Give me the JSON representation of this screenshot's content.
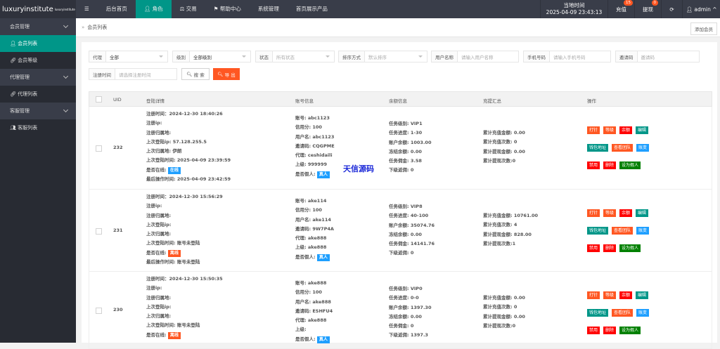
{
  "header": {
    "logo": "luxuryinstitute",
    "logo_sup": "luxuryinstitute",
    "menu_icon": "menu-icon",
    "nav": [
      "后台首页",
      "角色",
      "交易",
      "帮助中心",
      "系统管理",
      "首页展示产品"
    ],
    "time_label": "当地时间",
    "time_value": "2025-04-09 23:43:13",
    "recharge": "充值",
    "recharge_count": "15",
    "withdraw": "提现",
    "withdraw_count": "0",
    "user": "admin"
  },
  "sidebar": [
    {
      "label": "会员管理",
      "type": "group"
    },
    {
      "label": "会员列表",
      "type": "item",
      "active": true
    },
    {
      "label": "会员等级",
      "type": "item"
    },
    {
      "label": "代理管理",
      "type": "group"
    },
    {
      "label": "代理列表",
      "type": "item"
    },
    {
      "label": "客服管理",
      "type": "group"
    },
    {
      "label": "客服列表",
      "type": "item"
    }
  ],
  "breadcrumb": "会员列表",
  "add_button": "添加会员",
  "filters": {
    "agent_label": "代理",
    "agent_value": "全部",
    "level_label": "级别",
    "level_value": "全部级别",
    "status_label": "状态",
    "status_ph": "所有状态",
    "sort_label": "排序方式",
    "sort_ph": "默认排序",
    "username_label": "用户名称",
    "username_ph": "请输入用户名称",
    "phone_label": "手机号码",
    "phone_ph": "请输入手机号码",
    "invite_label": "邀请码",
    "invite_ph": "邀请码",
    "regtime_label": "注册时间",
    "regtime_ph": "请选择注册时间",
    "search": "搜 索",
    "export": "导 出"
  },
  "columns": [
    "UID",
    "登陆详情",
    "账号信息",
    "余额信息",
    "充提汇总",
    "操作"
  ],
  "actions": [
    [
      "打针",
      "等级",
      "余额",
      "编辑"
    ],
    [
      "钱包地址",
      "查看团队",
      "账变"
    ],
    [
      "禁用",
      "删除",
      "设为假人"
    ]
  ],
  "action_colors": [
    [
      "#ff5722",
      "#ff5722",
      "#ff0000",
      "#009688"
    ],
    [
      "#009688",
      "#ff5722",
      "#1e9fff"
    ],
    [
      "#ff0000",
      "#ff0000",
      "#008000"
    ]
  ],
  "colors": {
    "accent": "#009688",
    "online": "#1e9fff",
    "offline": "#ff5722",
    "real": "#1e9fff"
  },
  "rows": [
    {
      "uid": "232",
      "login": [
        "注册时间：2024-12-30 18:40:26",
        "注册ip:",
        "注册归属地:",
        "上次登陆ip: 57.128.255.5",
        "上次归属地: 伊朗",
        "上次登陆时间: 2025-04-09 23:39:59"
      ],
      "online_label": "是否在线:",
      "online": "在线",
      "online_state": "online",
      "last_op": "最后操作时间: 2025-04-09 23:42:59",
      "account": [
        "账号: abc1123",
        "信用分: 100",
        "用户名: abc1123",
        "邀请码: CQGPME",
        "代理: ceshidaili",
        "上级: 999999"
      ],
      "fake_label": "是否假人:",
      "fake": "真人",
      "balance": [
        "任务级别: VIP1",
        "任务进度: 1-30",
        "账户余额: 1003.00",
        "冻结余额: 0.00",
        "任务佣金: 3.58",
        "下级返佣: 0"
      ],
      "summary": [
        "累计充值金额: 0.00",
        "累计充值次数: 0",
        "累计提现金额: 0.00",
        "累计提现次数:0"
      ]
    },
    {
      "uid": "231",
      "login": [
        "注册时间：2024-12-30 15:56:29",
        "注册ip:",
        "注册归属地:",
        "上次登陆ip:",
        "上次归属地:",
        "上次登陆时间: 账号未登陆"
      ],
      "online_label": "是否在线:",
      "online": "离线",
      "online_state": "offline",
      "last_op": "最后操作时间: 账号未登陆",
      "account": [
        "账号: ake114",
        "信用分: 100",
        "用户名: ake114",
        "邀请码: 9W7P4A",
        "代理: ake888",
        "上级: ake888"
      ],
      "fake_label": "是否假人:",
      "fake": "真人",
      "balance": [
        "任务级别: VIP8",
        "任务进度: 40-100",
        "账户余额: 35074.76",
        "冻结余额: 0.00",
        "任务佣金: 14141.76",
        "下级返佣: 0"
      ],
      "summary": [
        "累计充值金额: 10761.00",
        "累计充值次数: 4",
        "累计提现金额: 828.00",
        "累计提现次数:1"
      ]
    },
    {
      "uid": "230",
      "login": [
        "注册时间：2024-12-30 15:50:35",
        "注册ip:",
        "注册归属地:",
        "上次登陆ip:",
        "上次归属地:",
        "上次登陆时间: 账号未登陆"
      ],
      "online_label": "是否在线:",
      "online": "离线",
      "online_state": "offline",
      "last_op": "",
      "account": [
        "账号: ake888",
        "信用分: 100",
        "用户名: ake888",
        "邀请码: ESHFU4",
        "代理: ake888",
        "上级:"
      ],
      "fake_label": "是否假人:",
      "fake": "真人",
      "balance": [
        "任务级别: VIP0",
        "任务进度: 0-0",
        "账户余额: 1397.30",
        "冻结余额: 0.00",
        "任务佣金: 0",
        "下级返佣: 1397.3"
      ],
      "summary": [
        "累计充值金额: 0.00",
        "累计充值次数: 0",
        "累计提现金额: 0.00",
        "累计提现次数:0"
      ]
    }
  ],
  "watermark": "天信源码"
}
